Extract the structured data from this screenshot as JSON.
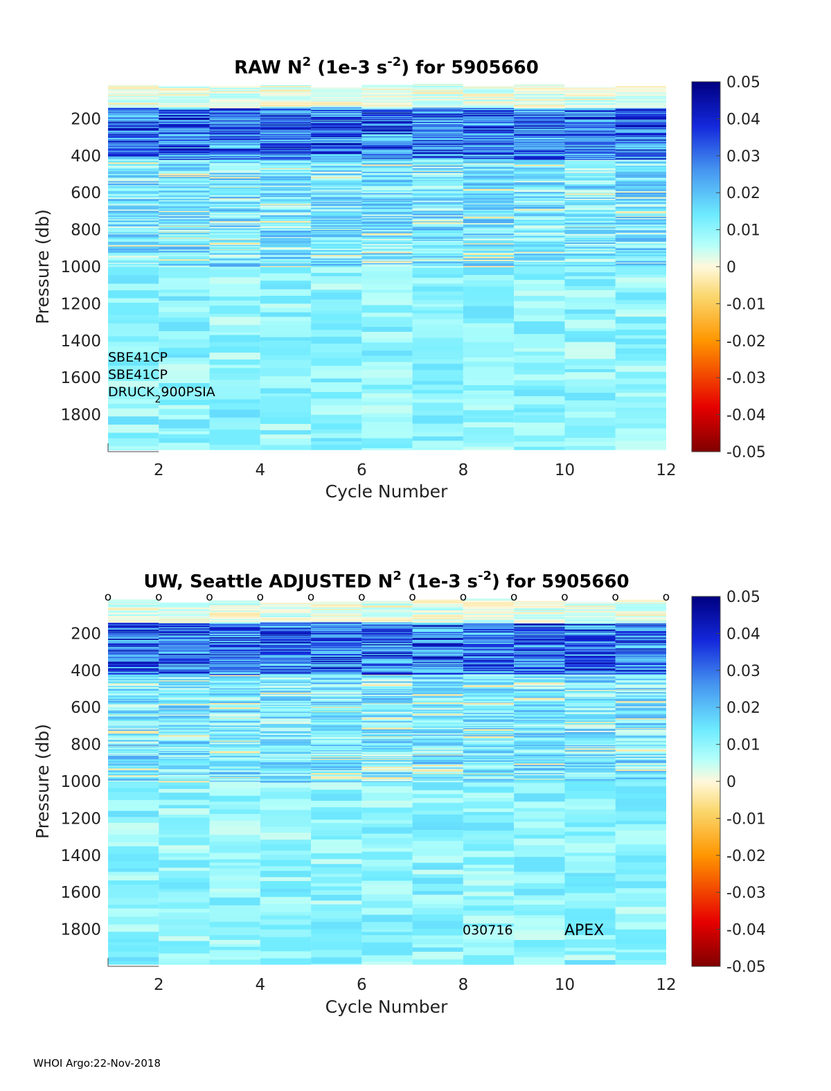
{
  "footer": "WHOI Argo:22-Nov-2018",
  "chart_data": [
    {
      "type": "heatmap",
      "title_prefix": "RAW N",
      "title_sup1": "2",
      "title_mid": " (1e-3 s",
      "title_sup2": "-2",
      "title_suffix": ") for 5905660",
      "xlabel": "Cycle Number",
      "ylabel": "Pressure (db)",
      "xlim": [
        1,
        12
      ],
      "ylim": [
        0,
        2000
      ],
      "xticks": [
        2,
        4,
        6,
        8,
        10,
        12
      ],
      "yticks": [
        200,
        400,
        600,
        800,
        1000,
        1200,
        1400,
        1600,
        1800
      ],
      "cycles": [
        1,
        2,
        3,
        4,
        5,
        6,
        7,
        8,
        9,
        10,
        11
      ],
      "colorbar": {
        "min": -0.05,
        "max": 0.05,
        "ticks": [
          "0.05",
          "0.04",
          "0.03",
          "0.02",
          "0.01",
          "0",
          "-0.01",
          "-0.02",
          "-0.03",
          "-0.04",
          "-0.05"
        ]
      },
      "annotations": [
        "SBE41CP",
        "SBE41CP",
        "DRUCK",
        "2",
        "900PSIA"
      ],
      "seed": 11
    },
    {
      "type": "heatmap",
      "title_prefix": "UW, Seattle  ADJUSTED N",
      "title_sup1": "2",
      "title_mid": " (1e-3 s",
      "title_sup2": "-2",
      "title_suffix": ") for 5905660",
      "xlabel": "Cycle Number",
      "ylabel": "Pressure (db)",
      "xlim": [
        1,
        12
      ],
      "ylim": [
        0,
        2000
      ],
      "xticks": [
        2,
        4,
        6,
        8,
        10,
        12
      ],
      "yticks": [
        200,
        400,
        600,
        800,
        1000,
        1200,
        1400,
        1600,
        1800
      ],
      "cycles": [
        1,
        2,
        3,
        4,
        5,
        6,
        7,
        8,
        9,
        10,
        11
      ],
      "markers": [
        "o",
        "o",
        "o",
        "o",
        "o",
        "o",
        "o",
        "o",
        "o",
        "o",
        "o",
        "o"
      ],
      "marker_cycles": [
        1,
        2,
        3,
        4,
        5,
        6,
        7,
        8,
        9,
        10,
        11,
        12
      ],
      "colorbar": {
        "min": -0.05,
        "max": 0.05,
        "ticks": [
          "0.05",
          "0.04",
          "0.03",
          "0.02",
          "0.01",
          "0",
          "-0.01",
          "-0.02",
          "-0.03",
          "-0.04",
          "-0.05"
        ]
      },
      "annotations": [
        "030716",
        "APEX"
      ],
      "seed": 29
    }
  ]
}
